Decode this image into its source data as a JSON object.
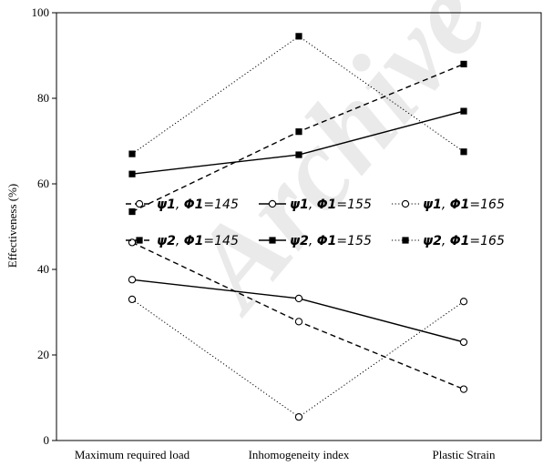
{
  "watermark": "Archive",
  "chart_data": {
    "type": "line",
    "categories": [
      "Maximum required load",
      "Inhomogeneity index",
      "Plastic Strain"
    ],
    "ylabel": "Effectiveness (%)",
    "xlabel": "",
    "ylim": [
      0,
      100
    ],
    "yticks": [
      0,
      20,
      40,
      60,
      80,
      100
    ],
    "grid": false,
    "legend_position": "center-right",
    "series": [
      {
        "name": "ψ1, Φ1=145",
        "psi": "ψ1",
        "phi": "Φ1=145",
        "marker": "open-circle",
        "line": "dashed",
        "values": [
          46.3,
          27.8,
          12.0
        ]
      },
      {
        "name": "ψ1, Φ1=155",
        "psi": "ψ1",
        "phi": "Φ1=155",
        "marker": "open-circle",
        "line": "solid",
        "values": [
          37.6,
          33.2,
          23.0
        ]
      },
      {
        "name": "ψ1, Φ1=165",
        "psi": "ψ1",
        "phi": "Φ1=165",
        "marker": "open-circle",
        "line": "dotted",
        "values": [
          33.0,
          5.5,
          32.5
        ]
      },
      {
        "name": "ψ2, Φ1=145",
        "psi": "ψ2",
        "phi": "Φ1=145",
        "marker": "filled-square",
        "line": "dashed",
        "values": [
          53.5,
          72.2,
          88.0
        ]
      },
      {
        "name": "ψ2, Φ1=155",
        "psi": "ψ2",
        "phi": "Φ1=155",
        "marker": "filled-square",
        "line": "solid",
        "values": [
          62.3,
          66.8,
          77.0
        ]
      },
      {
        "name": "ψ2, Φ1=165",
        "psi": "ψ2",
        "phi": "Φ1=165",
        "marker": "filled-square",
        "line": "dotted",
        "values": [
          67.0,
          94.5,
          67.5
        ]
      }
    ]
  }
}
